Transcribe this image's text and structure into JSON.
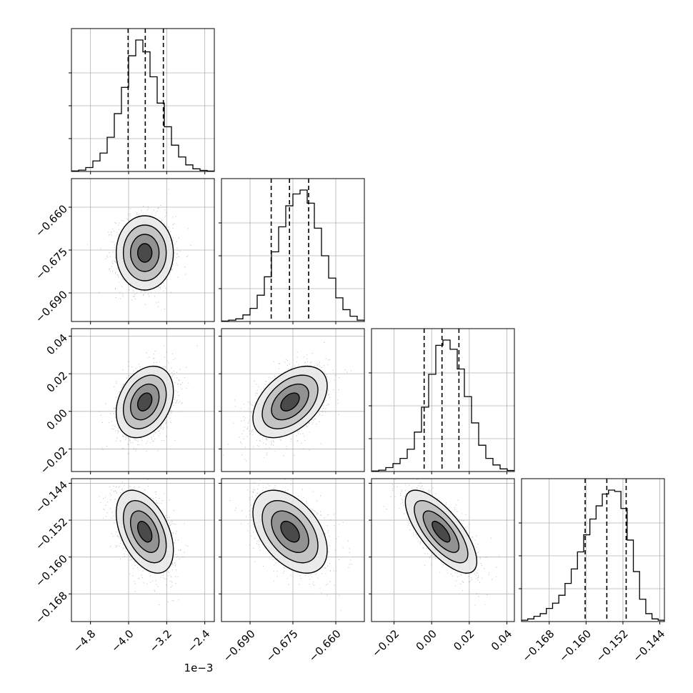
{
  "chart_data": {
    "type": "corner",
    "parameters": [
      {
        "range": [
          -5.2,
          -2.2
        ],
        "ticks": [
          -4.8,
          -4.0,
          -3.2,
          -2.4
        ],
        "tick_labels": [
          "−4.8",
          "−4.0",
          "−3.2",
          "−2.4"
        ],
        "offset_label": "1e−3",
        "quantiles": [
          -4.01,
          -3.65,
          -3.27
        ],
        "hist_bins": [
          0.004,
          0.01,
          0.03,
          0.08,
          0.14,
          0.26,
          0.44,
          0.64,
          0.88,
          1.0,
          0.91,
          0.72,
          0.52,
          0.34,
          0.2,
          0.11,
          0.05,
          0.02,
          0.008,
          0.003
        ],
        "mean": -3.66,
        "sd": 0.3
      },
      {
        "range": [
          -0.7,
          -0.65
        ],
        "ticks": [
          -0.69,
          -0.675,
          -0.66
        ],
        "tick_labels": [
          "−0.690",
          "−0.675",
          "−0.660"
        ],
        "quantiles": [
          -0.6826,
          -0.6762,
          -0.6695
        ],
        "hist_bins": [
          0.003,
          0.01,
          0.02,
          0.05,
          0.1,
          0.2,
          0.34,
          0.53,
          0.72,
          0.88,
          0.97,
          1.0,
          0.9,
          0.71,
          0.5,
          0.33,
          0.18,
          0.09,
          0.04,
          0.01
        ],
        "mean": -0.676,
        "sd": 0.0065
      },
      {
        "range": [
          -0.032,
          0.044
        ],
        "ticks": [
          -0.02,
          0.0,
          0.02,
          0.04
        ],
        "tick_labels": [
          "−0.02",
          "0.00",
          "0.02",
          "0.04"
        ],
        "quantiles": [
          -0.004,
          0.0055,
          0.0145
        ],
        "hist_bins": [
          0.004,
          0.01,
          0.03,
          0.06,
          0.1,
          0.17,
          0.3,
          0.49,
          0.74,
          0.96,
          1.0,
          0.93,
          0.78,
          0.57,
          0.37,
          0.2,
          0.1,
          0.05,
          0.02,
          0.008
        ],
        "mean": 0.005,
        "sd": 0.0095
      },
      {
        "range": [
          -0.174,
          -0.143
        ],
        "ticks": [
          -0.168,
          -0.16,
          -0.152,
          -0.144
        ],
        "tick_labels": [
          "−0.168",
          "−0.160",
          "−0.152",
          "−0.144"
        ],
        "quantiles": [
          -0.1602,
          -0.1555,
          -0.1513
        ],
        "hist_bins": [
          0.01,
          0.02,
          0.04,
          0.06,
          0.1,
          0.14,
          0.2,
          0.29,
          0.4,
          0.53,
          0.66,
          0.78,
          0.88,
          0.97,
          1.0,
          0.99,
          0.86,
          0.62,
          0.38,
          0.17,
          0.06,
          0.02,
          0.01
        ],
        "mean": -0.1545,
        "sd": 0.0045
      }
    ],
    "correlations": [
      [
        1,
        0,
        0.3,
        -0.45
      ],
      [
        0,
        1,
        0.45,
        -0.45
      ],
      [
        0.3,
        0.45,
        1,
        -0.72
      ],
      [
        -0.45,
        -0.45,
        -0.72,
        1
      ]
    ],
    "contour_sigmas": [
      0.5,
      1.0,
      1.5,
      2.0
    ],
    "grid": true,
    "colors": {
      "points": "#7f7f7f",
      "lines": "#000000",
      "grid": "#b0b0b0"
    }
  }
}
